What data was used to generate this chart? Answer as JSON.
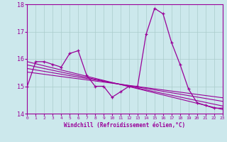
{
  "xlabel": "Windchill (Refroidissement éolien,°C)",
  "background_color": "#cce8ec",
  "line_color": "#990099",
  "grid_color": "#aacccc",
  "xlim": [
    0,
    23
  ],
  "ylim": [
    14,
    18
  ],
  "yticks": [
    14,
    15,
    16,
    17,
    18
  ],
  "xticks": [
    0,
    1,
    2,
    3,
    4,
    5,
    6,
    7,
    8,
    9,
    10,
    11,
    12,
    13,
    14,
    15,
    16,
    17,
    18,
    19,
    20,
    21,
    22,
    23
  ],
  "main_x": [
    0,
    1,
    2,
    3,
    4,
    5,
    6,
    7,
    8,
    9,
    10,
    11,
    12,
    13,
    14,
    15,
    16,
    17,
    18,
    19,
    20,
    21,
    22,
    23
  ],
  "main_y": [
    15.0,
    15.9,
    15.9,
    15.8,
    15.7,
    16.2,
    16.3,
    15.4,
    15.0,
    15.0,
    14.6,
    14.8,
    15.0,
    15.0,
    16.9,
    17.85,
    17.65,
    16.6,
    15.8,
    14.9,
    14.4,
    14.3,
    14.2,
    14.2
  ],
  "reg_lines": [
    {
      "x0": 0,
      "y0": 15.9,
      "x1": 23,
      "y1": 14.15
    },
    {
      "x0": 0,
      "y0": 15.78,
      "x1": 23,
      "y1": 14.28
    },
    {
      "x0": 0,
      "y0": 15.65,
      "x1": 23,
      "y1": 14.45
    },
    {
      "x0": 0,
      "y0": 15.52,
      "x1": 23,
      "y1": 14.58
    }
  ]
}
